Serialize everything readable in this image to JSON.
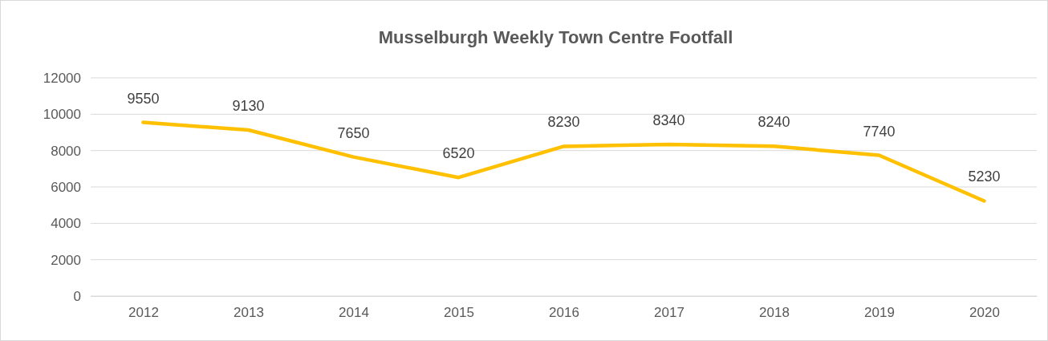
{
  "chart_data": {
    "type": "line",
    "title": "Musselburgh Weekly Town Centre Footfall",
    "categories": [
      "2012",
      "2013",
      "2014",
      "2015",
      "2016",
      "2017",
      "2018",
      "2019",
      "2020"
    ],
    "series": [
      {
        "color": "#ffc000",
        "values": [
          9550,
          9130,
          7650,
          6520,
          8230,
          8340,
          8240,
          7740,
          5230
        ]
      }
    ],
    "ylim": [
      0,
      12000
    ],
    "yticks": [
      0,
      2000,
      4000,
      6000,
      8000,
      10000,
      12000
    ],
    "grid": "y",
    "data_labels": true,
    "marker": "none",
    "line_style": "solid"
  }
}
